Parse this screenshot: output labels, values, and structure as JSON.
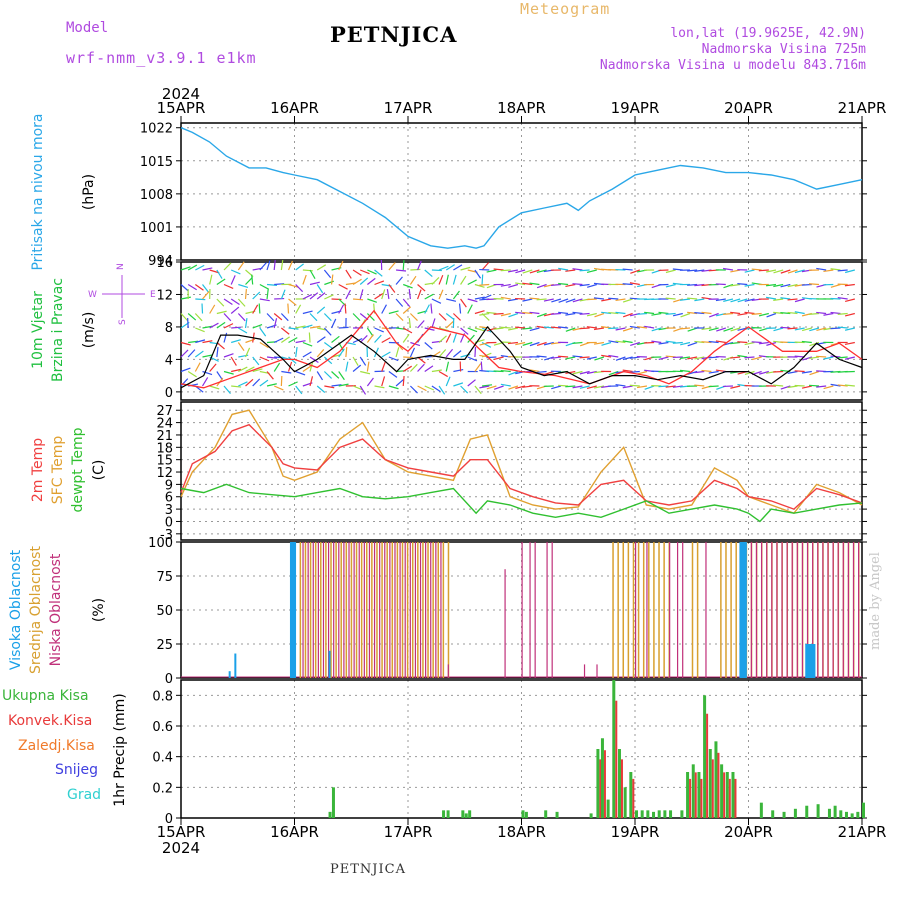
{
  "header": {
    "model_label": "Model",
    "model_name": "wrf-nmm_v3.9.1 e1km",
    "station": "PETNJICA",
    "meteogram_label": "Meteogram",
    "lonlat": "lon,lat (19.9625E, 42.9N)",
    "elevation": "Nadmorska Visina 725m",
    "model_elevation": "Nadmorska Visina u modelu 843.716m"
  },
  "footer": {
    "station": "PETNJICA",
    "watermark": "made by Angel"
  },
  "time_axis": {
    "year": "2024",
    "ticks": [
      "15APR",
      "16APR",
      "17APR",
      "18APR",
      "19APR",
      "20APR",
      "21APR"
    ]
  },
  "colors": {
    "pressure": "#2aa7e8",
    "wind_speed": "#000000",
    "wind_gust": "#ff3030",
    "t2m": "#f04040",
    "sfc": "#e0a030",
    "dewpt": "#30c030",
    "high_cloud": "#1aa0e8",
    "mid_cloud": "#d8a030",
    "low_cloud": "#c0307a",
    "precip_total": "#3ab53a",
    "precip_conv": "#e83a3a",
    "precip_frz": "#f07a2a",
    "snow": "#4040e0",
    "graupel": "#30d0d0"
  },
  "chart_data": [
    {
      "type": "line",
      "panel": "pressure",
      "ylabel": [
        "Pritisak na nivou mora",
        "(hPa)"
      ],
      "yticks": [
        994,
        1001,
        1008,
        1015,
        1022
      ],
      "ylim": [
        994,
        1023
      ],
      "x_days": [
        0,
        0.1,
        0.25,
        0.4,
        0.6,
        0.75,
        0.9,
        1.0,
        1.2,
        1.4,
        1.6,
        1.8,
        2.0,
        2.2,
        2.35,
        2.5,
        2.6,
        2.67,
        2.8,
        3.0,
        3.2,
        3.4,
        3.5,
        3.6,
        3.8,
        4.0,
        4.2,
        4.4,
        4.6,
        4.8,
        5.0,
        5.2,
        5.4,
        5.5,
        5.6,
        5.8,
        6.0
      ],
      "values": [
        1022,
        1021,
        1019,
        1016,
        1013.5,
        1013.5,
        1012.5,
        1012,
        1011,
        1008.5,
        1006,
        1003,
        999,
        997,
        996.5,
        997,
        996.5,
        997,
        1001,
        1004,
        1005,
        1006,
        1004.5,
        1006.5,
        1009,
        1012,
        1013,
        1014,
        1013.5,
        1012.5,
        1012.5,
        1012,
        1011,
        1010,
        1009,
        1010,
        1011
      ],
      "grid": true
    },
    {
      "type": "line",
      "panel": "wind",
      "ylabel": [
        "10m Vjetar",
        "Brzina i Pravac",
        "(m/s)"
      ],
      "direction_legend": [
        "N",
        "W",
        "E",
        "S"
      ],
      "yticks": [
        0,
        4,
        8,
        12,
        16
      ],
      "ylim": [
        -1,
        16
      ],
      "series": [
        {
          "key": "speed",
          "x_days": [
            0,
            0.2,
            0.35,
            0.5,
            0.7,
            0.9,
            1.0,
            1.2,
            1.4,
            1.5,
            1.7,
            1.9,
            2.0,
            2.2,
            2.4,
            2.5,
            2.7,
            2.9,
            3.0,
            3.2,
            3.4,
            3.6,
            3.8,
            4.0,
            4.2,
            4.4,
            4.6,
            4.8,
            5.0,
            5.2,
            5.4,
            5.6,
            5.8,
            6.0
          ],
          "values": [
            0.5,
            2,
            7,
            7,
            6.5,
            4,
            2.5,
            4,
            6,
            7,
            5,
            2.5,
            4,
            4.5,
            4,
            4,
            8,
            5,
            3,
            2,
            2.5,
            1,
            2,
            2,
            1.5,
            2,
            1.5,
            2.5,
            2.5,
            1,
            3,
            6,
            4,
            3
          ]
        },
        {
          "key": "gust",
          "x_days": [
            0,
            0.2,
            0.4,
            0.7,
            0.9,
            1.0,
            1.2,
            1.4,
            1.7,
            1.9,
            2.0,
            2.2,
            2.5,
            2.8,
            3.0,
            3.3,
            3.6,
            3.9,
            4.1,
            4.3,
            4.5,
            4.7,
            4.9,
            5.0,
            5.1,
            5.3,
            5.5,
            5.6,
            5.8,
            6.0
          ],
          "values": [
            1,
            0.5,
            1.5,
            3,
            4,
            4,
            3,
            5,
            10,
            6,
            5,
            8,
            7,
            3,
            2.5,
            2,
            1,
            2.5,
            2,
            1,
            2.5,
            5,
            7,
            8,
            7,
            5,
            5,
            5,
            6,
            4
          ]
        }
      ],
      "grid": true
    },
    {
      "type": "line",
      "panel": "temperature",
      "ylabel": [
        "2m Temp",
        "SFC Temp",
        "dewpt Temp",
        "(C)"
      ],
      "yticks": [
        -3,
        0,
        3,
        6,
        9,
        12,
        15,
        18,
        21,
        24,
        27
      ],
      "ylim": [
        -4.5,
        29
      ],
      "series": [
        {
          "key": "t2m",
          "x_days": [
            0,
            0.1,
            0.3,
            0.45,
            0.6,
            0.8,
            0.9,
            1.0,
            1.2,
            1.4,
            1.6,
            1.8,
            2.0,
            2.2,
            2.4,
            2.55,
            2.7,
            2.9,
            3.1,
            3.3,
            3.5,
            3.7,
            3.9,
            4.1,
            4.3,
            4.5,
            4.7,
            4.9,
            5.0,
            5.2,
            5.4,
            5.6,
            5.8,
            6.0
          ],
          "values": [
            7,
            14,
            17,
            22,
            23.5,
            18,
            14,
            13,
            12.5,
            18,
            20,
            15,
            13,
            12,
            11,
            15,
            15,
            8,
            6,
            4.5,
            4,
            9,
            10,
            5,
            4,
            5,
            10,
            8,
            6,
            5,
            3,
            8,
            6.5,
            4.5
          ]
        },
        {
          "key": "sfc",
          "x_days": [
            0,
            0.1,
            0.3,
            0.45,
            0.6,
            0.8,
            0.9,
            1.0,
            1.2,
            1.4,
            1.6,
            1.8,
            2.0,
            2.2,
            2.4,
            2.55,
            2.7,
            2.9,
            3.1,
            3.3,
            3.5,
            3.7,
            3.9,
            4.1,
            4.3,
            4.5,
            4.7,
            4.9,
            5.0,
            5.2,
            5.4,
            5.6,
            5.8,
            6.0
          ],
          "values": [
            6,
            12,
            18,
            26,
            27,
            18,
            11,
            10,
            12,
            20,
            24,
            15,
            12,
            11,
            10,
            20,
            21,
            6,
            4,
            3,
            3.5,
            12,
            18,
            4,
            3,
            4,
            13,
            10,
            6,
            4,
            2,
            9,
            7,
            4
          ]
        },
        {
          "key": "dewpt",
          "x_days": [
            0,
            0.2,
            0.4,
            0.6,
            0.8,
            1.0,
            1.2,
            1.4,
            1.6,
            1.8,
            2.0,
            2.2,
            2.4,
            2.6,
            2.7,
            2.9,
            3.1,
            3.3,
            3.5,
            3.7,
            3.9,
            4.1,
            4.3,
            4.5,
            4.7,
            4.9,
            5.0,
            5.1,
            5.2,
            5.4,
            5.6,
            5.8,
            6.0
          ],
          "values": [
            8,
            7,
            9,
            7,
            6.5,
            6,
            7,
            8,
            6,
            5.5,
            6,
            7,
            8,
            2,
            5,
            4,
            2,
            1,
            2,
            1,
            3,
            5,
            2,
            3,
            4,
            3,
            2,
            0,
            3,
            2,
            3,
            4,
            4.5
          ]
        }
      ],
      "grid": true
    },
    {
      "type": "bar",
      "panel": "cloud",
      "ylabel": [
        "Visoka Oblacnost",
        "Srednja Oblacnost",
        "Niska Oblacnost",
        "(%)"
      ],
      "yticks": [
        0,
        25,
        50,
        75,
        100
      ],
      "ylim": [
        0,
        100
      ],
      "series": [
        {
          "key": "high",
          "segments": [
            [
              0.42,
              0.42,
              5
            ],
            [
              0.47,
              0.47,
              18
            ],
            [
              0.96,
              1.0,
              100
            ],
            [
              1.3,
              1.3,
              20
            ],
            [
              4.92,
              4.97,
              100
            ],
            [
              5.5,
              5.58,
              25
            ]
          ],
          "single": [
            [
              0.98,
              40
            ],
            [
              0.97,
              40
            ]
          ]
        },
        {
          "key": "mid",
          "segments": [
            [
              1.0,
              2.35,
              100
            ],
            [
              3.8,
              4.3,
              100
            ],
            [
              4.5,
              4.55,
              100
            ],
            [
              4.75,
              6.0,
              100
            ]
          ]
        },
        {
          "key": "low",
          "segments": [
            [
              1.05,
              2.3,
              100
            ],
            [
              3.05,
              3.15,
              100
            ],
            [
              3.2,
              3.3,
              100
            ],
            [
              4.35,
              4.45,
              100
            ],
            [
              4.6,
              4.65,
              100
            ],
            [
              5.0,
              6.0,
              100
            ]
          ],
          "singles": [
            [
              2.35,
              10
            ],
            [
              2.85,
              80
            ],
            [
              3.0,
              100
            ],
            [
              3.55,
              10
            ],
            [
              3.66,
              10
            ],
            [
              4.0,
              100
            ],
            [
              4.1,
              100
            ],
            [
              4.3,
              100
            ],
            [
              4.95,
              55
            ]
          ]
        }
      ],
      "grid": true
    },
    {
      "type": "bar",
      "panel": "precip",
      "ylabel": [
        "Ukupna Kisa",
        "Konvek.Kisa",
        "Zaledj.Kisa",
        "Snijeg",
        "Grad",
        "1hr Precip (mm)"
      ],
      "yticks": [
        0,
        0.2,
        0.4,
        0.6,
        0.8
      ],
      "ylim": [
        0,
        0.9
      ],
      "x_days": [
        1.3,
        1.33,
        2.3,
        2.34,
        2.47,
        2.5,
        2.53,
        3.0,
        3.03,
        3.2,
        3.3,
        3.6,
        3.66,
        3.7,
        3.75,
        3.8,
        3.85,
        3.9,
        3.95,
        4.0,
        4.05,
        4.1,
        4.15,
        4.2,
        4.25,
        4.3,
        4.4,
        4.45,
        4.5,
        4.55,
        4.6,
        4.65,
        4.7,
        4.75,
        4.8,
        4.85,
        5.1,
        5.2,
        5.3,
        5.4,
        5.5,
        5.6,
        5.7,
        5.75,
        5.8,
        5.85,
        5.9,
        5.95,
        6.0
      ],
      "values": [
        0.04,
        0.2,
        0.05,
        0.05,
        0.05,
        0.03,
        0.05,
        0.05,
        0.04,
        0.05,
        0.04,
        0.03,
        0.45,
        0.52,
        0.12,
        0.9,
        0.45,
        0.2,
        0.3,
        0.05,
        0.05,
        0.05,
        0.04,
        0.05,
        0.05,
        0.05,
        0.05,
        0.3,
        0.35,
        0.3,
        0.8,
        0.45,
        0.5,
        0.35,
        0.3,
        0.3,
        0.1,
        0.05,
        0.04,
        0.06,
        0.08,
        0.09,
        0.06,
        0.08,
        0.05,
        0.04,
        0.03,
        0.04,
        0.1
      ],
      "grid": true
    }
  ]
}
